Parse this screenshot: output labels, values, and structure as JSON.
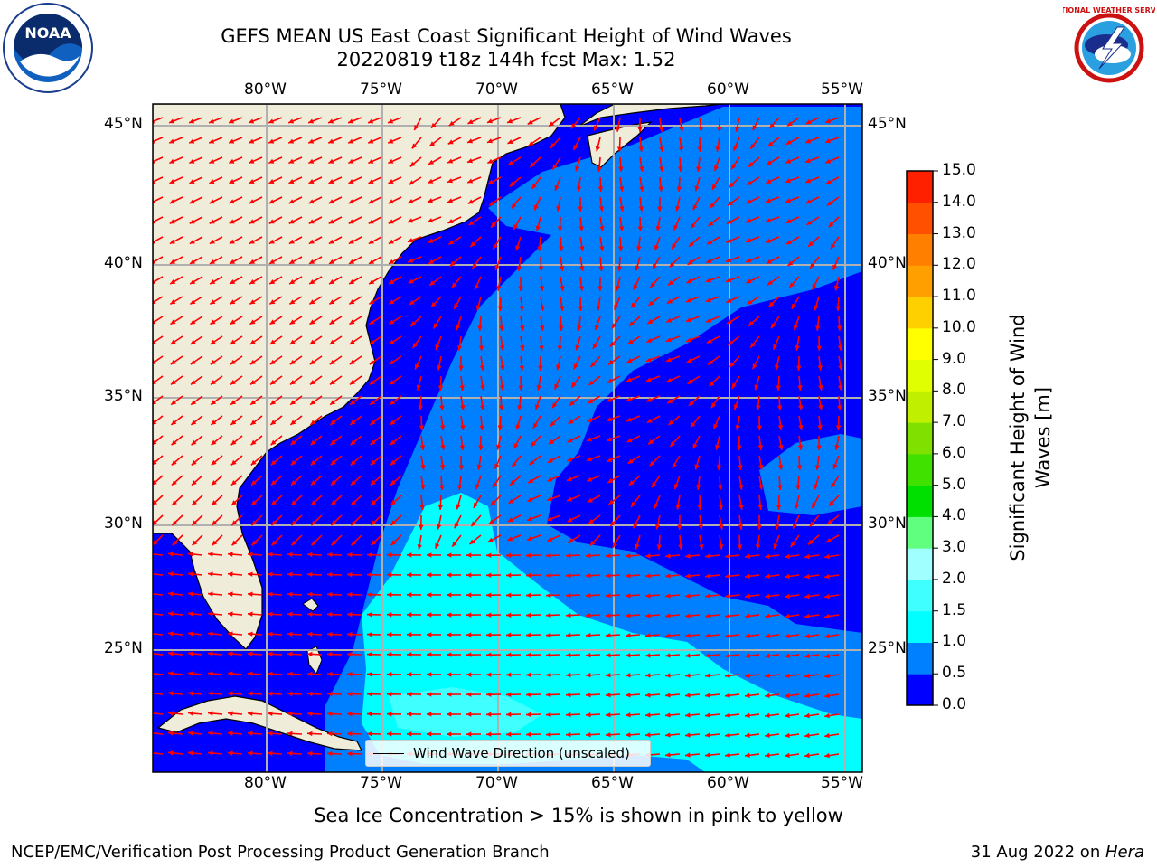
{
  "title": {
    "line1": "GEFS MEAN US East Coast Significant Height of Wind Waves",
    "line2": "20220819 t18z 144h fcst   Max: 1.52"
  },
  "logos": {
    "noaa_text": "NOAA",
    "nws_text": "NATIONAL WEATHER SERVICE"
  },
  "map": {
    "lon_ticks": [
      "80°W",
      "75°W",
      "70°W",
      "65°W",
      "60°W",
      "55°W"
    ],
    "lat_ticks": [
      "45°N",
      "40°N",
      "35°N",
      "30°N",
      "25°N"
    ],
    "land_color": "#efedda",
    "arrow_color": "#ff0000",
    "grid_color": "#b0b0b0",
    "legend_label": "Wind Wave Direction (unscaled)"
  },
  "colorbar": {
    "label_line1": "Significant Height of Wind",
    "label_line2": "Waves [m]",
    "ticks": [
      "0.0",
      "0.5",
      "1.0",
      "1.5",
      "2.0",
      "3.0",
      "4.0",
      "5.0",
      "6.0",
      "7.0",
      "8.0",
      "9.0",
      "10.0",
      "11.0",
      "12.0",
      "13.0",
      "14.0",
      "15.0"
    ],
    "colors": [
      "#0000ff",
      "#0080ff",
      "#00ffff",
      "#40ffff",
      "#a0ffff",
      "#60ff80",
      "#00e000",
      "#40e000",
      "#80e000",
      "#c0f000",
      "#e0ff00",
      "#ffff00",
      "#ffd000",
      "#ffa000",
      "#ff8000",
      "#ff5000",
      "#ff2000",
      "#ff0000"
    ]
  },
  "note": "Sea Ice Concentration > 15% is shown in pink to yellow",
  "footer": {
    "left": "NCEP/EMC/Verification Post Processing Product Generation Branch",
    "right_date": "31 Aug 2022 on ",
    "right_machine": "Hera"
  }
}
